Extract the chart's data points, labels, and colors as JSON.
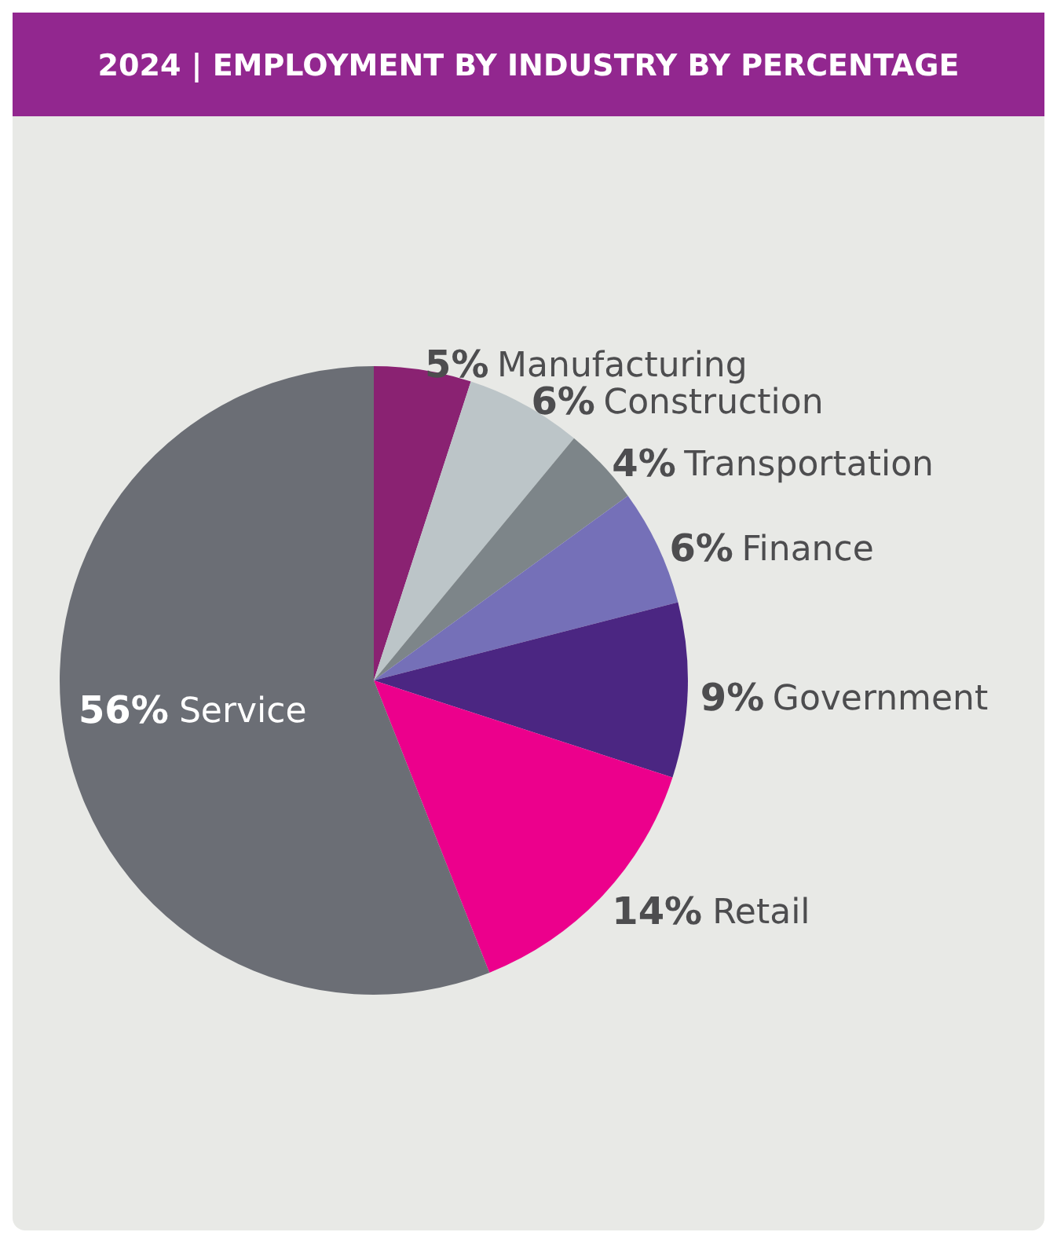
{
  "chart_data": {
    "type": "pie",
    "title": "2024 |  EMPLOYMENT BY INDUSTRY BY PERCENTAGE",
    "categories": [
      "Manufacturing",
      "Construction",
      "Transportation",
      "Finance",
      "Government",
      "Retail",
      "Service"
    ],
    "values": [
      5,
      6,
      4,
      6,
      9,
      14,
      56
    ],
    "colors": [
      "#8a2272",
      "#bcc5c8",
      "#7d8589",
      "#7570b8",
      "#4b2682",
      "#ec008c",
      "#6b6e75"
    ],
    "value_labels": [
      "5%",
      "6%",
      "4%",
      "6%",
      "9%",
      "14%",
      "56%"
    ]
  }
}
